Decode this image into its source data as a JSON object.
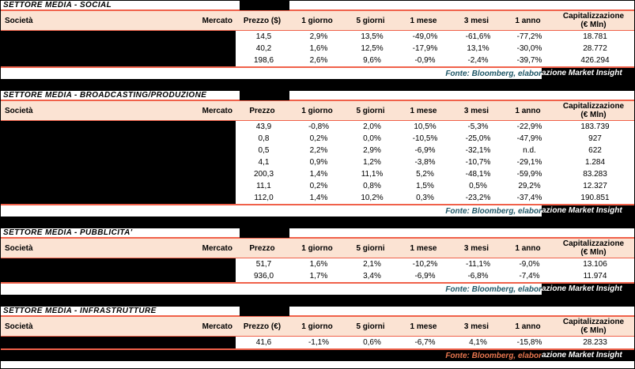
{
  "colors": {
    "header_band": "#fbe3d3",
    "table_border": "#f0614a",
    "source_text": "#215868",
    "source_text_on_black": "#e8764f",
    "redaction": "#000000"
  },
  "headers": {
    "societa": "Società",
    "mercato": "Mercato",
    "periods": [
      "1 giorno",
      "5 giorni",
      "1 mese",
      "3 mesi",
      "1 anno"
    ],
    "cap_line1": "Capitalizzazione",
    "cap_line2": "(€ Mln)"
  },
  "footer": {
    "full_text": "Fonte: Bloomberg, elaborazione Market Insight",
    "left": "Fonte: Bloomberg, elabor",
    "boxed": "azione Market Insight"
  },
  "sections": [
    {
      "title": "SETTORE MEDIA - SOCIAL",
      "price_label": "Prezzo ($)",
      "rows": [
        [
          "14,5",
          "2,9%",
          "13,5%",
          "-49,0%",
          "-61,6%",
          "-77,2%",
          "18.781"
        ],
        [
          "40,2",
          "1,6%",
          "12,5%",
          "-17,9%",
          "13,1%",
          "-30,0%",
          "28.772"
        ],
        [
          "198,6",
          "2,6%",
          "9,6%",
          "-0,9%",
          "-2,4%",
          "-39,7%",
          "426.294"
        ]
      ]
    },
    {
      "title": "SETTORE MEDIA - BROADCASTING/PRODUZIONE",
      "price_label": "Prezzo",
      "rows": [
        [
          "43,9",
          "-0,8%",
          "2,0%",
          "10,5%",
          "-5,3%",
          "-22,9%",
          "183.739"
        ],
        [
          "0,8",
          "0,2%",
          "0,0%",
          "-10,5%",
          "-25,0%",
          "-47,9%",
          "927"
        ],
        [
          "0,5",
          "2,2%",
          "2,9%",
          "-6,9%",
          "-32,1%",
          "n.d.",
          "622"
        ],
        [
          "4,1",
          "0,9%",
          "1,2%",
          "-3,8%",
          "-10,7%",
          "-29,1%",
          "1.284"
        ],
        [
          "200,3",
          "1,4%",
          "11,1%",
          "5,2%",
          "-48,1%",
          "-59,9%",
          "83.283"
        ],
        [
          "11,1",
          "0,2%",
          "0,8%",
          "1,5%",
          "0,5%",
          "29,2%",
          "12.327"
        ],
        [
          "112,0",
          "1,4%",
          "10,2%",
          "0,3%",
          "-23,2%",
          "-37,4%",
          "190.851"
        ]
      ]
    },
    {
      "title": "SETTORE MEDIA - PUBBLICITA'",
      "price_label": "Prezzo",
      "rows": [
        [
          "51,7",
          "1,6%",
          "2,1%",
          "-10,2%",
          "-11,1%",
          "-9,0%",
          "13.106"
        ],
        [
          "936,0",
          "1,7%",
          "3,4%",
          "-6,9%",
          "-6,8%",
          "-7,4%",
          "11.974"
        ]
      ]
    },
    {
      "title": "SETTORE MEDIA - INFRASTRUTTURE",
      "price_label": "Prezzo (€)",
      "rows": [
        [
          "41,6",
          "-1,1%",
          "0,6%",
          "-6,7%",
          "4,1%",
          "-15,8%",
          "28.233"
        ]
      ]
    }
  ]
}
